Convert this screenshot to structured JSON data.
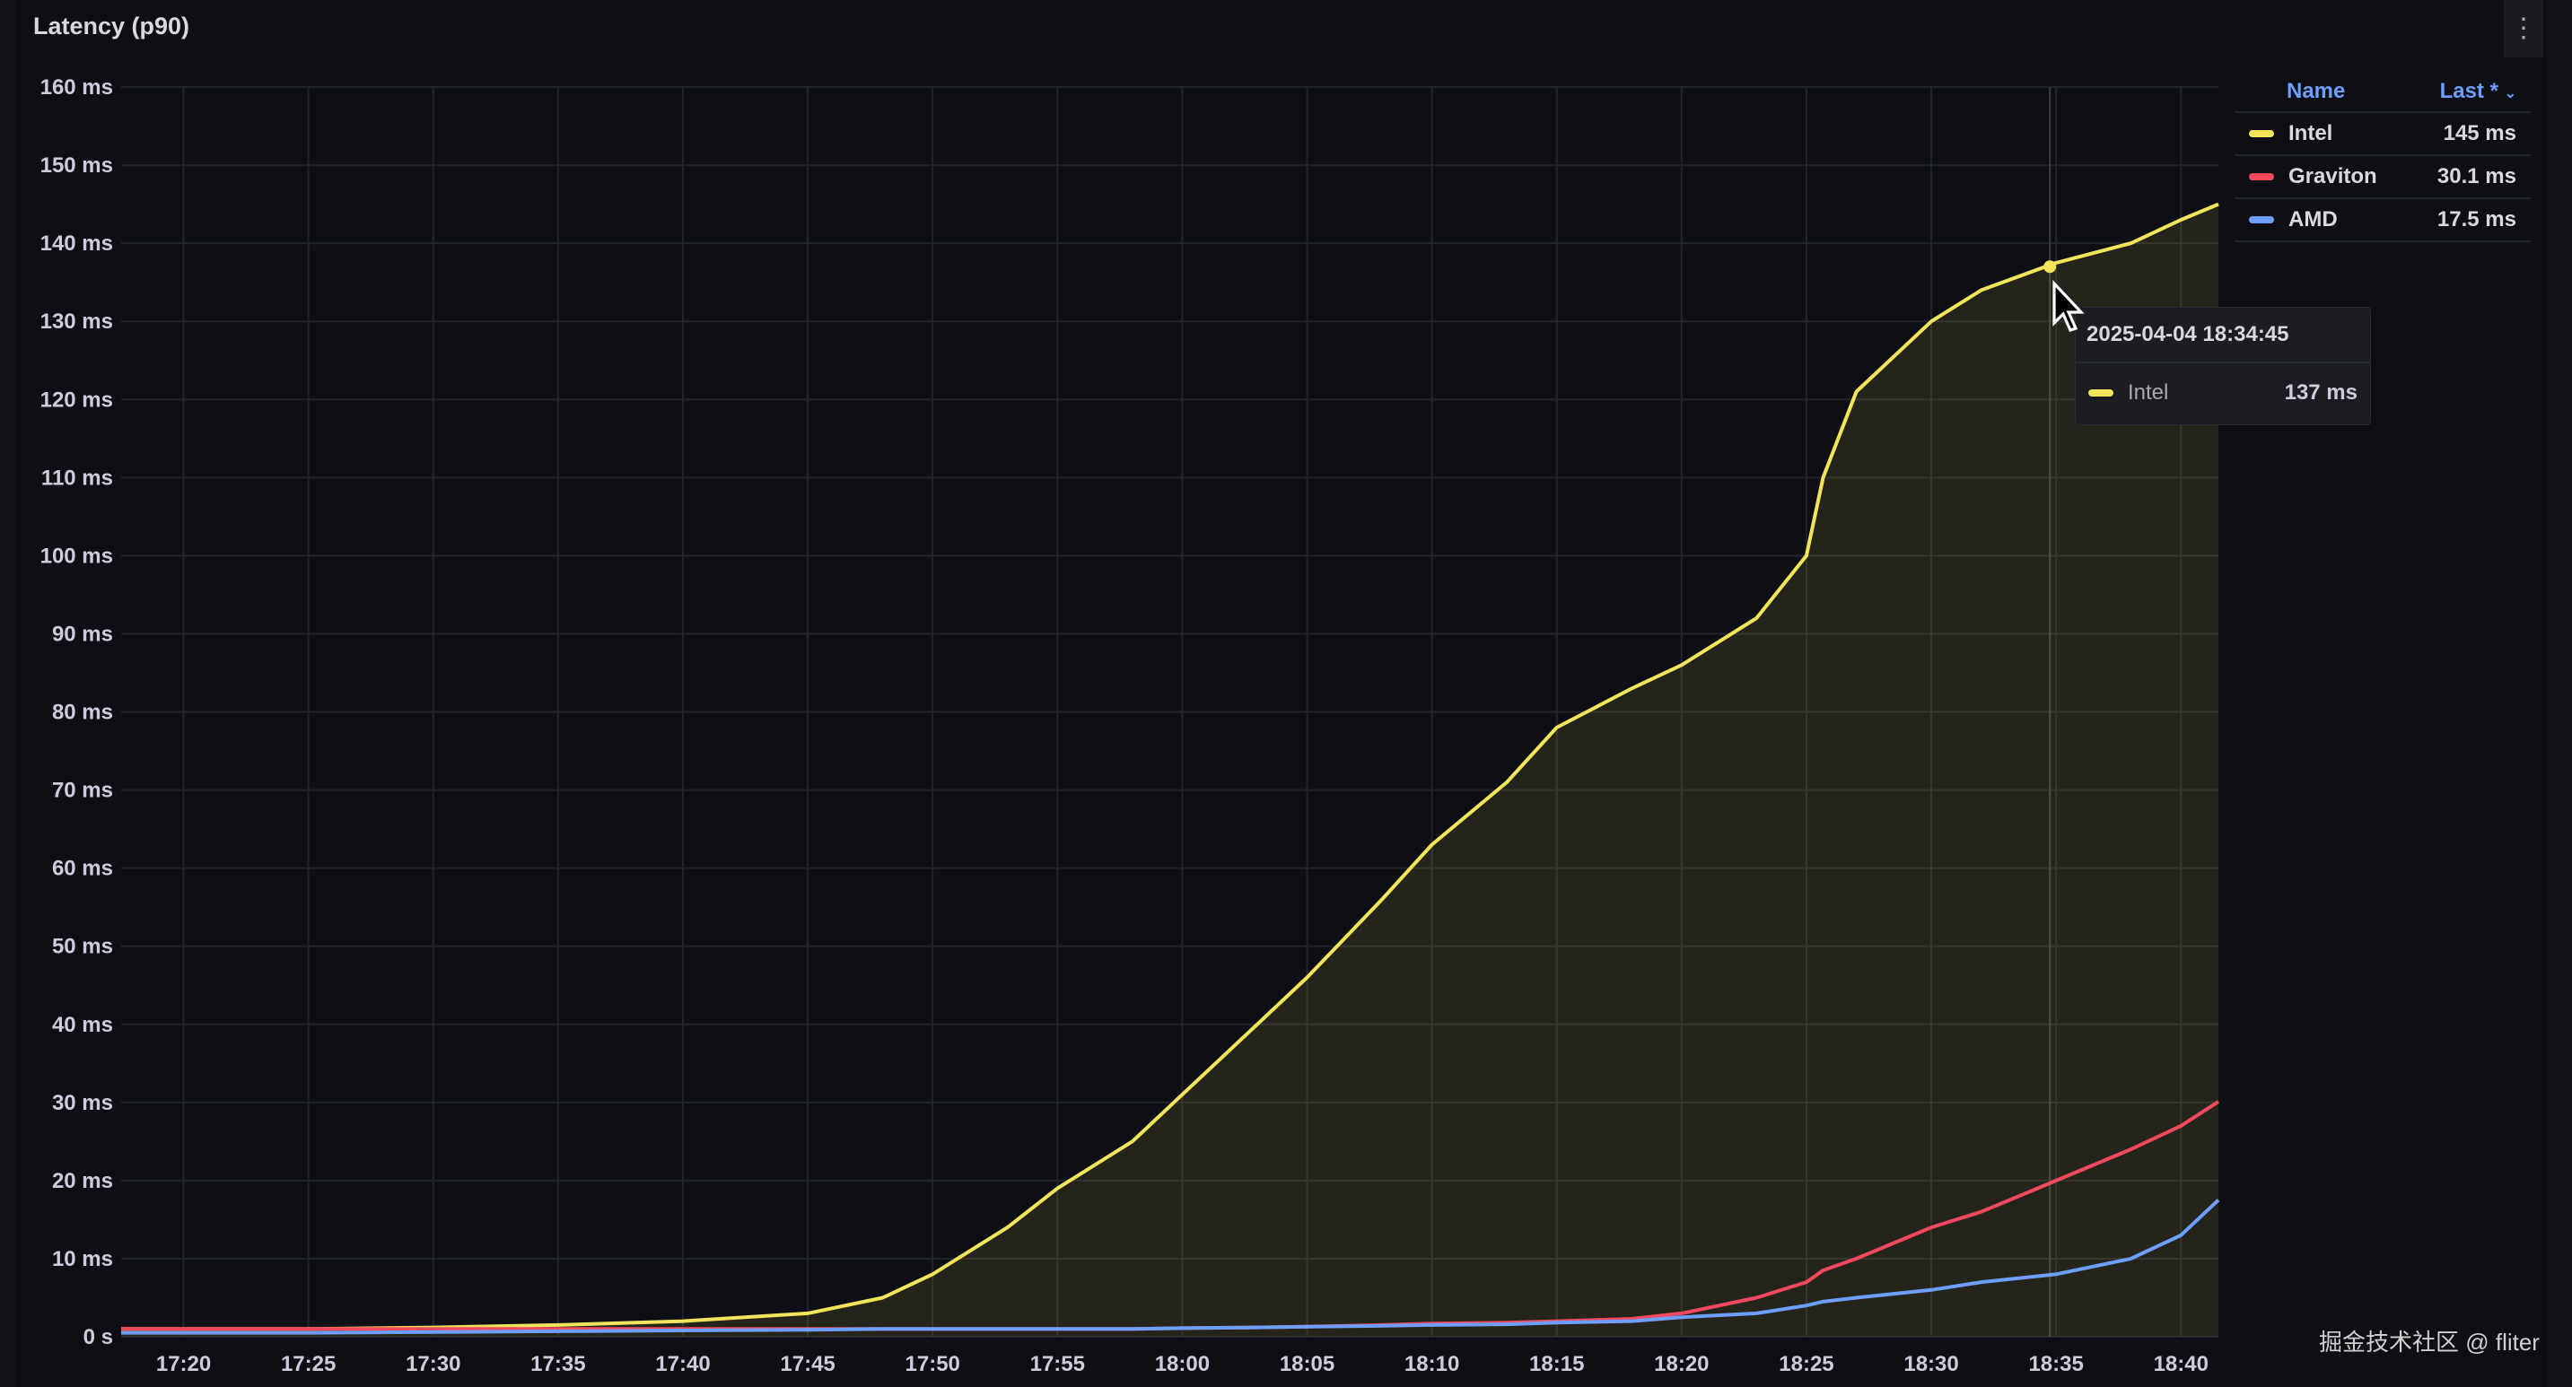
{
  "panel": {
    "title": "Latency (p90)",
    "menu_icon": "vertical-ellipsis-icon"
  },
  "chart_data": {
    "type": "area",
    "title": "Latency (p90)",
    "xlabel": "",
    "ylabel": "",
    "x_range": [
      "17:17:30",
      "18:41:30"
    ],
    "ylim": [
      0,
      160
    ],
    "y_ticks": [
      "0 s",
      "10 ms",
      "20 ms",
      "30 ms",
      "40 ms",
      "50 ms",
      "60 ms",
      "70 ms",
      "80 ms",
      "90 ms",
      "100 ms",
      "110 ms",
      "120 ms",
      "130 ms",
      "140 ms",
      "150 ms",
      "160 ms"
    ],
    "x_ticks": [
      "17:20",
      "17:25",
      "17:30",
      "17:35",
      "17:40",
      "17:45",
      "17:50",
      "17:55",
      "18:00",
      "18:05",
      "18:10",
      "18:15",
      "18:20",
      "18:25",
      "18:30",
      "18:35",
      "18:40"
    ],
    "grid": true,
    "legend_placement": "right",
    "x": [
      "17:17:30",
      "17:20",
      "17:25",
      "17:30",
      "17:35",
      "17:40",
      "17:45",
      "17:48",
      "17:50",
      "17:53",
      "17:55",
      "17:58",
      "18:00",
      "18:03",
      "18:05",
      "18:08",
      "18:10",
      "18:13",
      "18:15",
      "18:18",
      "18:20",
      "18:23",
      "18:25",
      "18:25:40",
      "18:27",
      "18:30",
      "18:32",
      "18:35",
      "18:38",
      "18:40",
      "18:41:30"
    ],
    "series": [
      {
        "name": "Intel",
        "color": "#f2e55c",
        "fill": true,
        "values": [
          1,
          1,
          1,
          1.2,
          1.5,
          2,
          3,
          5,
          8,
          14,
          19,
          25,
          31,
          40,
          46,
          56,
          63,
          71,
          78,
          83,
          86,
          92,
          100,
          110,
          121,
          130,
          134,
          137.5,
          140,
          143,
          145
        ]
      },
      {
        "name": "Graviton",
        "color": "#f2495c",
        "values": [
          1,
          1,
          1,
          1,
          1,
          1,
          1,
          1,
          1,
          1,
          1,
          1,
          1.1,
          1.2,
          1.3,
          1.5,
          1.7,
          1.8,
          2,
          2.3,
          3,
          5,
          7,
          8.5,
          10,
          14,
          16,
          20,
          24,
          27,
          30.1
        ]
      },
      {
        "name": "AMD",
        "color": "#6e9fff",
        "values": [
          0.5,
          0.5,
          0.5,
          0.6,
          0.7,
          0.8,
          0.9,
          1,
          1,
          1,
          1,
          1,
          1.1,
          1.2,
          1.3,
          1.4,
          1.5,
          1.6,
          1.8,
          2,
          2.5,
          3,
          4,
          4.5,
          5,
          6,
          7,
          8,
          10,
          13,
          17.5
        ]
      }
    ]
  },
  "legend": {
    "header_name": "Name",
    "header_last": "Last *",
    "sort_icon": "chevron-down-icon",
    "rows": [
      {
        "name": "Intel",
        "last": "145 ms",
        "color": "#f2e55c"
      },
      {
        "name": "Graviton",
        "last": "30.1 ms",
        "color": "#f2495c"
      },
      {
        "name": "AMD",
        "last": "17.5 ms",
        "color": "#6e9fff"
      }
    ]
  },
  "tooltip": {
    "time": "2025-04-04 18:34:45",
    "series": "Intel",
    "value": "137 ms",
    "color": "#f2e55c",
    "hover_x": "18:34:45",
    "hover_y": 137
  },
  "watermark": "掘金技术社区 @ fliter"
}
